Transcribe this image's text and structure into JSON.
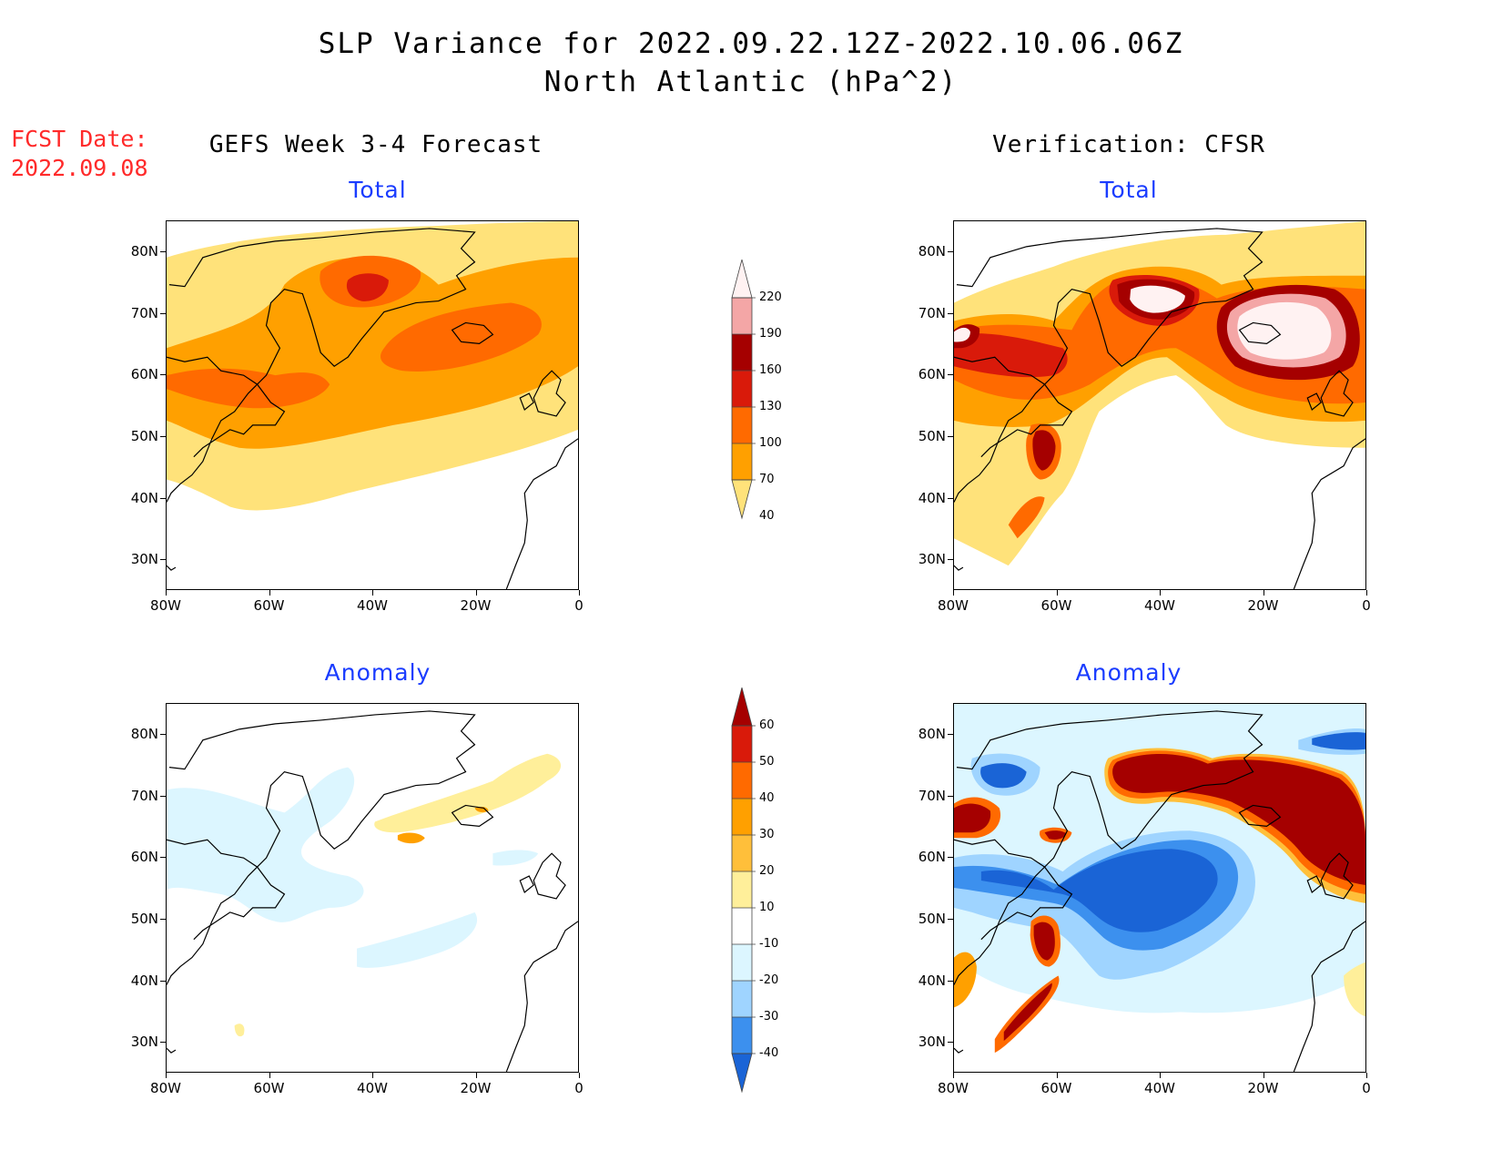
{
  "title": {
    "line1": "SLP Variance for 2022.09.22.12Z-2022.10.06.06Z",
    "line2": "North Atlantic (hPa^2)"
  },
  "fcst_date": {
    "label": "FCST Date:",
    "value": "2022.09.08"
  },
  "columns": {
    "left": "GEFS Week 3-4 Forecast",
    "right": "Verification: CFSR"
  },
  "panels": {
    "total_label": "Total",
    "anomaly_label": "Anomaly"
  },
  "axes": {
    "lat_labels": [
      "80N",
      "70N",
      "60N",
      "50N",
      "40N",
      "30N"
    ],
    "lon_labels": [
      "80W",
      "60W",
      "40W",
      "20W",
      "0"
    ],
    "lat_range": [
      25,
      85
    ],
    "lon_range": [
      -80,
      0
    ]
  },
  "colorbars": {
    "total": {
      "labels": [
        "220",
        "190",
        "160",
        "130",
        "100",
        "70",
        "40"
      ],
      "colors": [
        "#fff2f2",
        "#f4a6a6",
        "#a50000",
        "#d91a0a",
        "#ff6a00",
        "#ffa000",
        "#ffe27a"
      ]
    },
    "anomaly": {
      "labels": [
        "60",
        "50",
        "40",
        "30",
        "20",
        "10",
        "-10",
        "-20",
        "-30",
        "-40"
      ],
      "colors": [
        "#a50000",
        "#d91a0a",
        "#ff6a00",
        "#ffa000",
        "#ffbf3a",
        "#ffef9a",
        "#ffffff",
        "#dcf6ff",
        "#9fd4ff",
        "#3c90ee",
        "#1a64d6"
      ]
    }
  }
}
